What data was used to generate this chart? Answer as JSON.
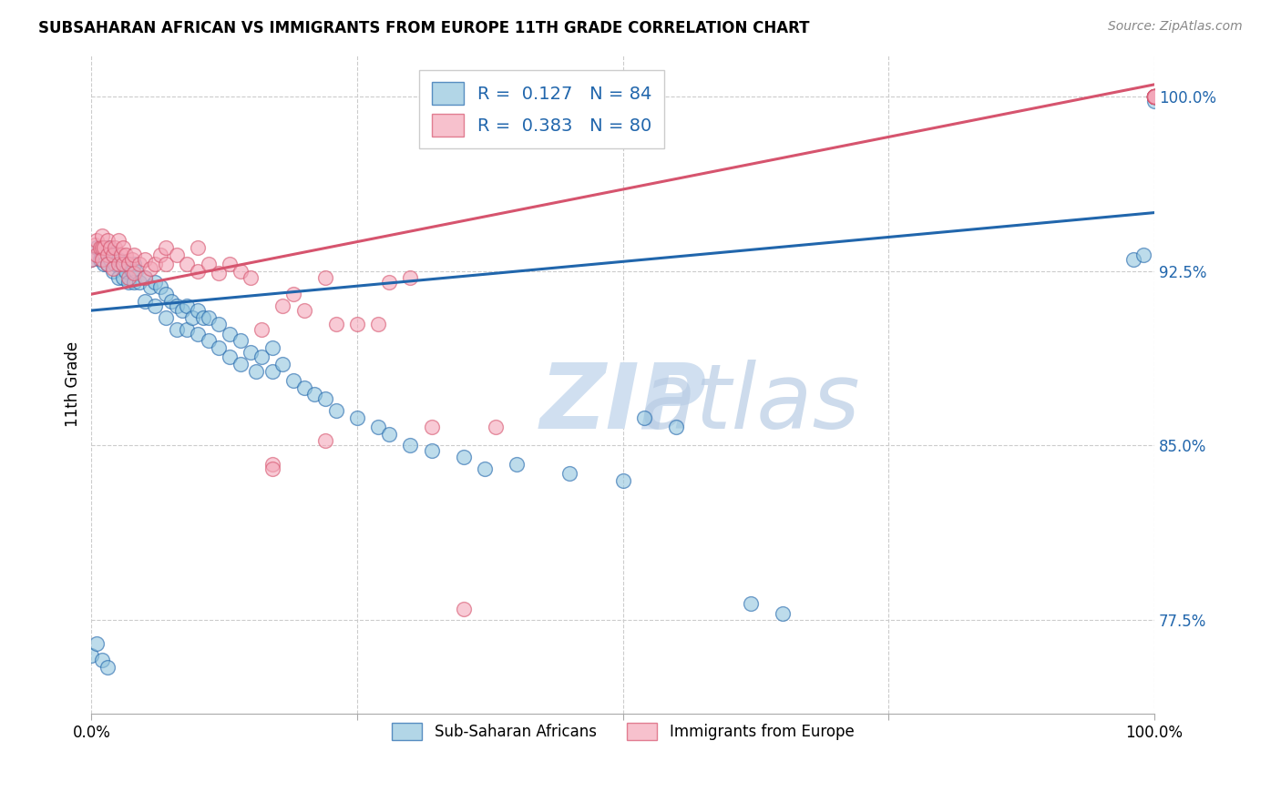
{
  "title": "SUBSAHARAN AFRICAN VS IMMIGRANTS FROM EUROPE 11TH GRADE CORRELATION CHART",
  "source": "Source: ZipAtlas.com",
  "ylabel": "11th Grade",
  "xlim": [
    0.0,
    1.0
  ],
  "ylim": [
    0.735,
    1.018
  ],
  "yticks": [
    0.775,
    0.85,
    0.925,
    1.0
  ],
  "ytick_labels": [
    "77.5%",
    "85.0%",
    "92.5%",
    "100.0%"
  ],
  "r_blue": 0.127,
  "n_blue": 84,
  "r_pink": 0.383,
  "n_pink": 80,
  "legend_blue": "Sub-Saharan Africans",
  "legend_pink": "Immigrants from Europe",
  "blue_color": "#92c5de",
  "pink_color": "#f4a7b9",
  "line_blue": "#2166ac",
  "line_pink": "#d6546e",
  "tick_color": "#2166ac",
  "watermark_color": "#d0dff0",
  "blue_line_start_y": 0.908,
  "blue_line_end_y": 0.95,
  "pink_line_start_y": 0.915,
  "pink_line_end_y": 1.005,
  "blue_scatter_x": [
    0.0,
    0.005,
    0.008,
    0.01,
    0.012,
    0.015,
    0.015,
    0.018,
    0.02,
    0.02,
    0.022,
    0.025,
    0.025,
    0.03,
    0.03,
    0.032,
    0.035,
    0.035,
    0.038,
    0.04,
    0.04,
    0.042,
    0.045,
    0.05,
    0.05,
    0.055,
    0.06,
    0.06,
    0.065,
    0.07,
    0.07,
    0.075,
    0.08,
    0.08,
    0.085,
    0.09,
    0.09,
    0.095,
    0.1,
    0.1,
    0.105,
    0.11,
    0.11,
    0.12,
    0.12,
    0.13,
    0.13,
    0.14,
    0.14,
    0.15,
    0.155,
    0.16,
    0.17,
    0.17,
    0.18,
    0.19,
    0.2,
    0.21,
    0.22,
    0.23,
    0.25,
    0.27,
    0.28,
    0.3,
    0.32,
    0.35,
    0.37,
    0.4,
    0.45,
    0.5,
    0.52,
    0.55,
    0.62,
    0.65,
    0.98,
    0.99,
    1.0,
    1.0,
    1.0,
    1.0,
    0.0,
    0.005,
    0.01,
    0.015
  ],
  "blue_scatter_y": [
    0.93,
    0.935,
    0.93,
    0.932,
    0.928,
    0.935,
    0.928,
    0.93,
    0.932,
    0.925,
    0.928,
    0.93,
    0.922,
    0.928,
    0.922,
    0.925,
    0.928,
    0.92,
    0.925,
    0.928,
    0.92,
    0.925,
    0.92,
    0.922,
    0.912,
    0.918,
    0.92,
    0.91,
    0.918,
    0.915,
    0.905,
    0.912,
    0.91,
    0.9,
    0.908,
    0.91,
    0.9,
    0.905,
    0.908,
    0.898,
    0.905,
    0.905,
    0.895,
    0.902,
    0.892,
    0.898,
    0.888,
    0.895,
    0.885,
    0.89,
    0.882,
    0.888,
    0.892,
    0.882,
    0.885,
    0.878,
    0.875,
    0.872,
    0.87,
    0.865,
    0.862,
    0.858,
    0.855,
    0.85,
    0.848,
    0.845,
    0.84,
    0.842,
    0.838,
    0.835,
    0.862,
    0.858,
    0.782,
    0.778,
    0.93,
    0.932,
    0.998,
    1.0,
    1.0,
    1.0,
    0.76,
    0.765,
    0.758,
    0.755
  ],
  "pink_scatter_x": [
    0.0,
    0.003,
    0.005,
    0.005,
    0.008,
    0.01,
    0.01,
    0.01,
    0.012,
    0.015,
    0.015,
    0.015,
    0.018,
    0.02,
    0.02,
    0.022,
    0.025,
    0.025,
    0.028,
    0.03,
    0.03,
    0.032,
    0.035,
    0.035,
    0.038,
    0.04,
    0.04,
    0.045,
    0.05,
    0.05,
    0.055,
    0.06,
    0.065,
    0.07,
    0.07,
    0.08,
    0.09,
    0.1,
    0.1,
    0.11,
    0.12,
    0.13,
    0.14,
    0.15,
    0.16,
    0.17,
    0.18,
    0.19,
    0.2,
    0.22,
    0.23,
    0.25,
    0.27,
    0.28,
    0.3,
    0.32,
    0.35,
    0.38,
    0.17,
    0.22,
    1.0,
    1.0,
    1.0,
    1.0,
    1.0,
    1.0,
    1.0,
    1.0,
    1.0,
    1.0,
    1.0,
    1.0,
    1.0,
    1.0,
    1.0,
    1.0,
    1.0,
    1.0,
    1.0,
    1.0
  ],
  "pink_scatter_y": [
    0.93,
    0.936,
    0.938,
    0.932,
    0.935,
    0.94,
    0.935,
    0.93,
    0.935,
    0.938,
    0.932,
    0.928,
    0.935,
    0.932,
    0.926,
    0.935,
    0.938,
    0.928,
    0.932,
    0.935,
    0.928,
    0.932,
    0.928,
    0.922,
    0.93,
    0.932,
    0.924,
    0.928,
    0.93,
    0.922,
    0.926,
    0.928,
    0.932,
    0.935,
    0.928,
    0.932,
    0.928,
    0.925,
    0.935,
    0.928,
    0.924,
    0.928,
    0.925,
    0.922,
    0.9,
    0.842,
    0.91,
    0.915,
    0.908,
    0.922,
    0.902,
    0.902,
    0.902,
    0.92,
    0.922,
    0.858,
    0.78,
    0.858,
    0.84,
    0.852,
    1.0,
    1.0,
    1.0,
    1.0,
    1.0,
    1.0,
    1.0,
    1.0,
    1.0,
    1.0,
    1.0,
    1.0,
    1.0,
    1.0,
    1.0,
    1.0,
    1.0,
    1.0,
    1.0,
    1.0
  ]
}
